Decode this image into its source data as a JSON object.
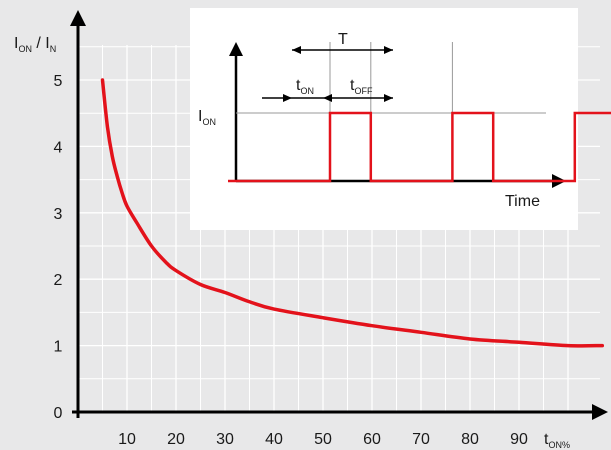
{
  "colors": {
    "background": "#e8e8e9",
    "grid": "#ffffff",
    "curve": "#e3121b",
    "axis": "#000000",
    "inset_background": "#ffffff"
  },
  "chart_data": [
    {
      "type": "line",
      "ylabel": {
        "main": "I",
        "sub": "ON",
        "sep": " / ",
        "main2": "I",
        "sub2": "N"
      },
      "xlabel": {
        "main": "t",
        "sub": "ON%"
      },
      "xlim": [
        0,
        100
      ],
      "ylim": [
        0,
        5.9
      ],
      "x_ticks": [
        10,
        20,
        30,
        40,
        50,
        60,
        70,
        80,
        90
      ],
      "y_ticks": [
        0,
        1,
        2,
        3,
        4,
        5
      ],
      "grid": true,
      "series": [
        {
          "x": [
            5,
            6,
            7,
            8,
            9,
            10,
            12,
            15,
            18,
            20,
            25,
            30,
            35,
            40,
            50,
            60,
            70,
            80,
            90,
            100,
            107
          ],
          "y": [
            5,
            4.3,
            3.85,
            3.55,
            3.3,
            3.1,
            2.85,
            2.5,
            2.25,
            2.13,
            1.92,
            1.8,
            1.66,
            1.55,
            1.42,
            1.3,
            1.2,
            1.1,
            1.05,
            1.0,
            1.0
          ]
        }
      ]
    },
    {
      "type": "line",
      "ylabel": {
        "main": "I",
        "sub": "ON"
      },
      "xlabel": "Time",
      "annotations": {
        "period": "T",
        "t_on": {
          "main": "t",
          "sub": "ON"
        },
        "t_off": {
          "main": "t",
          "sub": "OFF"
        }
      },
      "series": [
        {
          "step_x": [
            0,
            2.5,
            2.5,
            3.5,
            3.5,
            5.5,
            5.5,
            6.5,
            6.5,
            8.5,
            8.5,
            9.5,
            9.5,
            12
          ],
          "step_y": [
            0,
            0,
            1,
            1,
            0,
            0,
            1,
            1,
            0,
            0,
            1,
            1,
            0,
            0
          ]
        }
      ]
    }
  ]
}
